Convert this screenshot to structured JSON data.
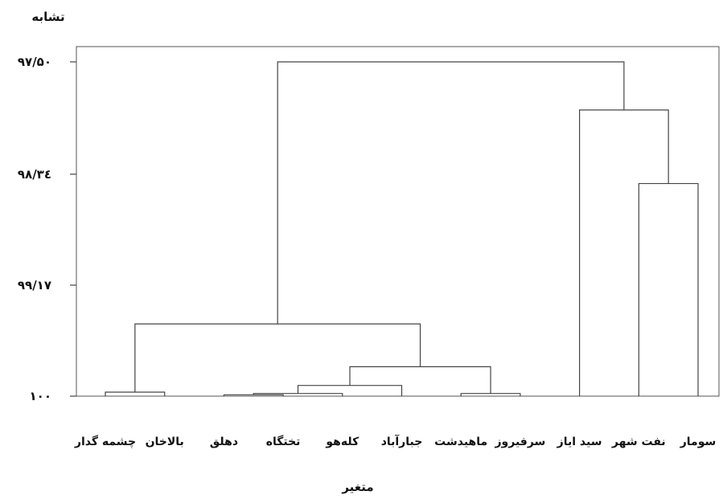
{
  "chart_data": {
    "type": "dendrogram",
    "title": "",
    "ylabel": "تشابه",
    "xlabel": "متغیر",
    "ylim": [
      97.5,
      100
    ],
    "y_ticks": [
      {
        "value": 97.5,
        "label": "۹۷/۵۰"
      },
      {
        "value": 98.34,
        "label": "۹۸/۳٤"
      },
      {
        "value": 99.17,
        "label": "۹۹/۱۷"
      },
      {
        "value": 100,
        "label": "۱۰۰"
      }
    ],
    "leaves": [
      "چشمه گدار",
      "بالاخان",
      "دهلق",
      "تختگاه",
      "کله‌هو",
      "جبارآباد",
      "ماهیدشت",
      "سرفیروز",
      "سید ایاز",
      "نفت شهر",
      "سومار"
    ],
    "merges": [
      {
        "id": "m1",
        "left": "L2",
        "right": "L3",
        "height": 99.99
      },
      {
        "id": "m2",
        "left": "L0",
        "right": "L1",
        "height": 99.97
      },
      {
        "id": "m3",
        "left": "m1",
        "right": "L4",
        "height": 99.98
      },
      {
        "id": "m4",
        "left": "L6",
        "right": "L7",
        "height": 99.98
      },
      {
        "id": "m5",
        "left": "m3",
        "right": "L5",
        "height": 99.92
      },
      {
        "id": "m6",
        "left": "m5",
        "right": "m4",
        "height": 99.78
      },
      {
        "id": "m7",
        "left": "m2",
        "right": "m6",
        "height": 99.46
      },
      {
        "id": "m8",
        "left": "L9",
        "right": "L10",
        "height": 98.41
      },
      {
        "id": "m9",
        "left": "L8",
        "right": "m8",
        "height": 97.86
      },
      {
        "id": "m10",
        "left": "m7",
        "right": "m9",
        "height": 97.5
      }
    ]
  }
}
